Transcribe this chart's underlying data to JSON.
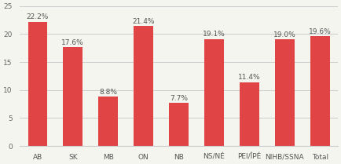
{
  "categories": [
    "AB",
    "SK",
    "MB",
    "ON",
    "NB",
    "NS/NÉ",
    "PEI/ÎPÉ",
    "NIHB/SSNA",
    "Total"
  ],
  "values": [
    22.2,
    17.6,
    8.8,
    21.4,
    7.7,
    19.1,
    11.4,
    19.0,
    19.6
  ],
  "labels": [
    "22.2%",
    "17.6%",
    "8.8%",
    "21.4%",
    "7.7%",
    "19.1%",
    "11.4%",
    "19.0%",
    "19.6%"
  ],
  "bar_color": "#e04444",
  "ylim": [
    0,
    25
  ],
  "yticks": [
    0,
    5,
    10,
    15,
    20,
    25
  ],
  "background_color": "#f5f5f0",
  "grid_color": "#cccccc",
  "label_fontsize": 6.5,
  "tick_fontsize": 6.5,
  "bar_width": 0.55
}
